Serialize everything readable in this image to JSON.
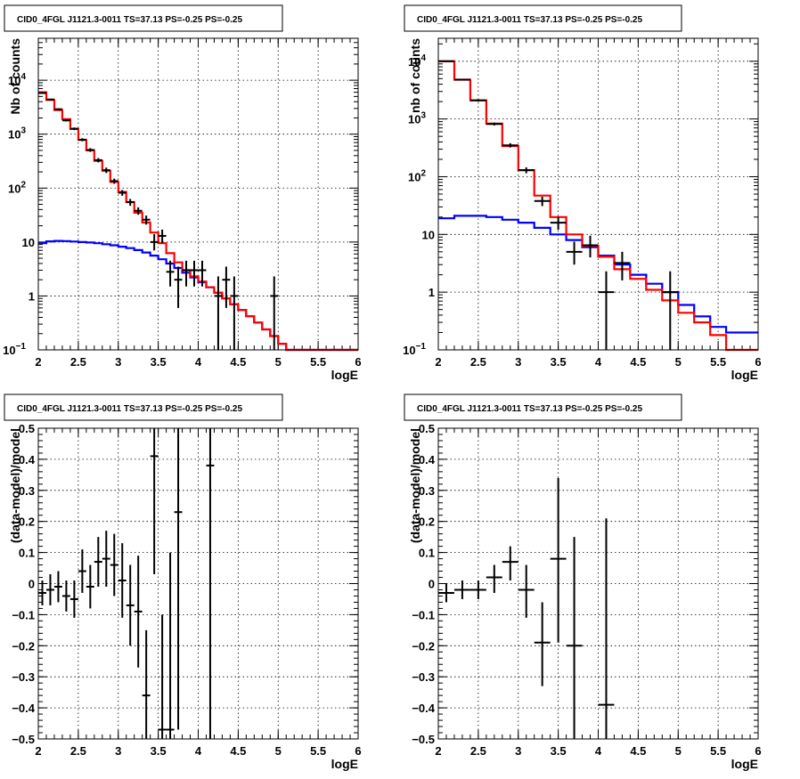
{
  "window_title": "",
  "chart_data": [
    {
      "type": "step-histogram-with-errorbars",
      "title": "CID0_4FGL J1121.3-0011 TS=37.13 PS=-0.25 PS=-0.25",
      "xlabel": "logE",
      "ylabel": "Nb of counts",
      "xlim": [
        2,
        6
      ],
      "ylim": [
        0.1,
        60000
      ],
      "yscale": "log",
      "grid": true,
      "x_ticks": [
        "2",
        "2.5",
        "3",
        "3.5",
        "4",
        "4.5",
        "5",
        "5.5",
        "6"
      ],
      "y_ticks": [
        {
          "value": 0.1,
          "label": "10",
          "sup": "−1"
        },
        {
          "value": 1,
          "label": "1",
          "sup": ""
        },
        {
          "value": 10,
          "label": "10",
          "sup": ""
        },
        {
          "value": 100,
          "label": "10",
          "sup": "2"
        },
        {
          "value": 1000,
          "label": "10",
          "sup": "3"
        },
        {
          "value": 10000,
          "label": "10",
          "sup": "4"
        }
      ],
      "bin_width": 0.1,
      "series": [
        {
          "type": "step",
          "color": "#0000ff",
          "x_start": 2.0,
          "values": [
            9.5,
            10.3,
            10.5,
            10.4,
            10.2,
            10.0,
            9.8,
            9.5,
            9.1,
            8.7,
            8.2,
            7.7,
            7.1,
            6.4,
            5.6,
            4.8,
            4.0,
            3.3,
            2.7,
            2.2,
            1.8,
            1.45,
            1.15,
            0.9,
            0.7,
            0.55,
            0.42,
            0.32,
            0.24,
            0.18,
            0.13,
            0.1,
            0.1,
            0.1,
            0.1,
            0.1,
            0.1,
            0.1,
            0.1,
            0.1
          ]
        },
        {
          "type": "step",
          "color": "#ff0000",
          "x_start": 2.0,
          "values": [
            6000,
            4300,
            2800,
            1900,
            1250,
            780,
            500,
            320,
            210,
            130,
            85,
            55,
            35,
            23,
            15,
            9.5,
            6.2,
            4.2,
            3.0,
            2.3,
            1.85,
            1.45,
            1.15,
            0.9,
            0.7,
            0.55,
            0.42,
            0.32,
            0.24,
            0.18,
            0.13,
            0.1,
            0.1,
            0.1,
            0.1,
            0.1,
            0.1,
            0.1,
            0.1,
            0.1
          ]
        }
      ],
      "points": [
        {
          "x": 2.05,
          "y": 5800,
          "lo": 5650,
          "hi": 5950
        },
        {
          "x": 2.15,
          "y": 4400,
          "lo": 4270,
          "hi": 4530
        },
        {
          "x": 2.25,
          "y": 2900,
          "lo": 2790,
          "hi": 3010
        },
        {
          "x": 2.35,
          "y": 1800,
          "lo": 1720,
          "hi": 1880
        },
        {
          "x": 2.45,
          "y": 1260,
          "lo": 1190,
          "hi": 1330
        },
        {
          "x": 2.55,
          "y": 790,
          "lo": 740,
          "hi": 840
        },
        {
          "x": 2.65,
          "y": 510,
          "lo": 470,
          "hi": 550
        },
        {
          "x": 2.75,
          "y": 330,
          "lo": 300,
          "hi": 360
        },
        {
          "x": 2.85,
          "y": 215,
          "lo": 190,
          "hi": 240
        },
        {
          "x": 2.95,
          "y": 135,
          "lo": 120,
          "hi": 150
        },
        {
          "x": 3.05,
          "y": 82,
          "lo": 72,
          "hi": 92
        },
        {
          "x": 3.15,
          "y": 55,
          "lo": 47,
          "hi": 63
        },
        {
          "x": 3.25,
          "y": 38,
          "lo": 32,
          "hi": 44
        },
        {
          "x": 3.35,
          "y": 26,
          "lo": 21,
          "hi": 31
        },
        {
          "x": 3.45,
          "y": 10,
          "lo": 7,
          "hi": 14
        },
        {
          "x": 3.55,
          "y": 13,
          "lo": 9.5,
          "hi": 17
        },
        {
          "x": 3.65,
          "y": 2.8,
          "lo": 1.5,
          "hi": 4.5
        },
        {
          "x": 3.75,
          "y": 2,
          "lo": 0.6,
          "hi": 3.5
        },
        {
          "x": 3.85,
          "y": 3,
          "lo": 1.5,
          "hi": 4.5
        },
        {
          "x": 3.95,
          "y": 3,
          "lo": 1.5,
          "hi": 4.5
        },
        {
          "x": 4.05,
          "y": 3,
          "lo": 1.5,
          "hi": 4.5
        },
        {
          "x": 4.25,
          "y": 1,
          "lo": 0.1,
          "hi": 2.3
        },
        {
          "x": 4.35,
          "y": 2,
          "lo": 0.6,
          "hi": 3.5
        },
        {
          "x": 4.45,
          "y": 1,
          "lo": 0.1,
          "hi": 2.3
        },
        {
          "x": 4.95,
          "y": 1,
          "lo": 0.1,
          "hi": 2.3
        }
      ]
    },
    {
      "type": "step-histogram-with-errorbars",
      "title": "CID0_4FGL J1121.3-0011 TS=37.13 PS=-0.25 PS=-0.25",
      "xlabel": "logE",
      "ylabel": "nb of counts",
      "xlim": [
        2,
        6
      ],
      "ylim": [
        0.1,
        25000
      ],
      "yscale": "log",
      "grid": true,
      "x_ticks": [
        "2",
        "2.5",
        "3",
        "3.5",
        "4",
        "4.5",
        "5",
        "5.5",
        "6"
      ],
      "y_ticks": [
        {
          "value": 0.1,
          "label": "10",
          "sup": "−1"
        },
        {
          "value": 1,
          "label": "1",
          "sup": ""
        },
        {
          "value": 10,
          "label": "10",
          "sup": ""
        },
        {
          "value": 100,
          "label": "10",
          "sup": "2"
        },
        {
          "value": 1000,
          "label": "10",
          "sup": "3"
        },
        {
          "value": 10000,
          "label": "10",
          "sup": "4"
        }
      ],
      "bin_width": 0.2,
      "series": [
        {
          "type": "step",
          "color": "#0000ff",
          "x_start": 2.0,
          "values": [
            19,
            21,
            21,
            20,
            18,
            16,
            13,
            10,
            8,
            6,
            4.3,
            3.0,
            2.0,
            1.4,
            1.0,
            0.6,
            0.38,
            0.25,
            0.2,
            0.2
          ]
        },
        {
          "type": "step",
          "color": "#ff0000",
          "x_start": 2.0,
          "values": [
            10000,
            4800,
            2100,
            830,
            340,
            130,
            47,
            20,
            10,
            6.3,
            4.1,
            2.5,
            1.7,
            1.1,
            0.72,
            0.44,
            0.3,
            0.18,
            0.1,
            0.1
          ]
        }
      ],
      "points": [
        {
          "x": 2.1,
          "y": 10000,
          "lo": 9800,
          "hi": 10200
        },
        {
          "x": 2.3,
          "y": 4800,
          "lo": 4650,
          "hi": 4950
        },
        {
          "x": 2.5,
          "y": 2100,
          "lo": 2000,
          "hi": 2200
        },
        {
          "x": 2.7,
          "y": 820,
          "lo": 770,
          "hi": 870
        },
        {
          "x": 2.9,
          "y": 350,
          "lo": 320,
          "hi": 380
        },
        {
          "x": 3.1,
          "y": 130,
          "lo": 115,
          "hi": 145
        },
        {
          "x": 3.3,
          "y": 38,
          "lo": 31,
          "hi": 45
        },
        {
          "x": 3.5,
          "y": 16,
          "lo": 12,
          "hi": 20
        },
        {
          "x": 3.7,
          "y": 5,
          "lo": 3,
          "hi": 7.5
        },
        {
          "x": 3.9,
          "y": 6.5,
          "lo": 4,
          "hi": 9.5
        },
        {
          "x": 4.1,
          "y": 1,
          "lo": 0.1,
          "hi": 2.3
        },
        {
          "x": 4.3,
          "y": 3.2,
          "lo": 1.6,
          "hi": 5
        },
        {
          "x": 4.9,
          "y": 1,
          "lo": 0.1,
          "hi": 2.3
        }
      ]
    },
    {
      "type": "errorbars",
      "title": "CID0_4FGL J1121.3-0011 TS=37.13 PS=-0.25 PS=-0.25",
      "xlabel": "logE",
      "ylabel": "(data-model)/model",
      "xlim": [
        2,
        6
      ],
      "ylim": [
        -0.5,
        0.5
      ],
      "yscale": "linear",
      "grid": true,
      "x_ticks": [
        "2",
        "2.5",
        "3",
        "3.5",
        "4",
        "4.5",
        "5",
        "5.5",
        "6"
      ],
      "y_ticks": [
        {
          "value": -0.5,
          "label": "−0.5",
          "sup": ""
        },
        {
          "value": -0.4,
          "label": "−0.4",
          "sup": ""
        },
        {
          "value": -0.3,
          "label": "−0.3",
          "sup": ""
        },
        {
          "value": -0.2,
          "label": "−0.2",
          "sup": ""
        },
        {
          "value": -0.1,
          "label": "−0.1",
          "sup": ""
        },
        {
          "value": 0,
          "label": "0",
          "sup": ""
        },
        {
          "value": 0.1,
          "label": "0.1",
          "sup": ""
        },
        {
          "value": 0.2,
          "label": "0.2",
          "sup": ""
        },
        {
          "value": 0.3,
          "label": "0.3",
          "sup": ""
        },
        {
          "value": 0.4,
          "label": "0.4",
          "sup": ""
        },
        {
          "value": 0.5,
          "label": "0.5",
          "sup": ""
        }
      ],
      "bin_width": 0.1,
      "series": [],
      "points": [
        {
          "x": 2.05,
          "y": -0.03,
          "lo": -0.07,
          "hi": 0.01
        },
        {
          "x": 2.15,
          "y": -0.02,
          "lo": -0.07,
          "hi": 0.03
        },
        {
          "x": 2.25,
          "y": -0.01,
          "lo": -0.06,
          "hi": 0.04
        },
        {
          "x": 2.35,
          "y": -0.04,
          "lo": -0.09,
          "hi": 0.01
        },
        {
          "x": 2.45,
          "y": -0.05,
          "lo": -0.11,
          "hi": 0.01
        },
        {
          "x": 2.55,
          "y": 0.04,
          "lo": -0.03,
          "hi": 0.11
        },
        {
          "x": 2.65,
          "y": -0.01,
          "lo": -0.08,
          "hi": 0.06
        },
        {
          "x": 2.75,
          "y": 0.07,
          "lo": -0.01,
          "hi": 0.15
        },
        {
          "x": 2.85,
          "y": 0.08,
          "lo": -0.01,
          "hi": 0.17
        },
        {
          "x": 2.95,
          "y": 0.06,
          "lo": -0.04,
          "hi": 0.16
        },
        {
          "x": 3.05,
          "y": 0.01,
          "lo": -0.11,
          "hi": 0.13
        },
        {
          "x": 3.15,
          "y": -0.07,
          "lo": -0.2,
          "hi": 0.06
        },
        {
          "x": 3.25,
          "y": -0.09,
          "lo": -0.27,
          "hi": 0.09
        },
        {
          "x": 3.35,
          "y": -0.36,
          "lo": -0.5,
          "hi": -0.15
        },
        {
          "x": 3.45,
          "y": 0.41,
          "lo": 0.03,
          "hi": 0.5
        },
        {
          "x": 3.55,
          "y": -0.47,
          "lo": -0.5,
          "hi": -0.1
        },
        {
          "x": 3.65,
          "y": -0.47,
          "lo": -0.5,
          "hi": 0.1
        },
        {
          "x": 3.75,
          "y": 0.23,
          "lo": -0.47,
          "hi": 0.5
        },
        {
          "x": 4.15,
          "y": 0.38,
          "lo": -0.5,
          "hi": 0.5
        }
      ]
    },
    {
      "type": "errorbars",
      "title": "CID0_4FGL J1121.3-0011 TS=37.13 PS=-0.25 PS=-0.25",
      "xlabel": "logE",
      "ylabel": "(data-model)/model",
      "xlim": [
        2,
        6
      ],
      "ylim": [
        -0.5,
        0.5
      ],
      "yscale": "linear",
      "grid": true,
      "x_ticks": [
        "2",
        "2.5",
        "3",
        "3.5",
        "4",
        "4.5",
        "5",
        "5.5",
        "6"
      ],
      "y_ticks": [
        {
          "value": -0.5,
          "label": "−0.5",
          "sup": ""
        },
        {
          "value": -0.4,
          "label": "−0.4",
          "sup": ""
        },
        {
          "value": -0.3,
          "label": "−0.3",
          "sup": ""
        },
        {
          "value": -0.2,
          "label": "−0.2",
          "sup": ""
        },
        {
          "value": -0.1,
          "label": "−0.1",
          "sup": ""
        },
        {
          "value": 0,
          "label": "0",
          "sup": ""
        },
        {
          "value": 0.1,
          "label": "0.1",
          "sup": ""
        },
        {
          "value": 0.2,
          "label": "0.2",
          "sup": ""
        },
        {
          "value": 0.3,
          "label": "0.3",
          "sup": ""
        },
        {
          "value": 0.4,
          "label": "0.4",
          "sup": ""
        },
        {
          "value": 0.5,
          "label": "0.5",
          "sup": ""
        }
      ],
      "bin_width": 0.2,
      "series": [],
      "points": [
        {
          "x": 2.1,
          "y": -0.03,
          "lo": -0.06,
          "hi": 0.0
        },
        {
          "x": 2.3,
          "y": -0.02,
          "lo": -0.05,
          "hi": 0.01
        },
        {
          "x": 2.5,
          "y": -0.02,
          "lo": -0.05,
          "hi": 0.01
        },
        {
          "x": 2.7,
          "y": 0.02,
          "lo": -0.03,
          "hi": 0.06
        },
        {
          "x": 2.9,
          "y": 0.07,
          "lo": 0.01,
          "hi": 0.12
        },
        {
          "x": 3.1,
          "y": -0.02,
          "lo": -0.11,
          "hi": 0.06
        },
        {
          "x": 3.3,
          "y": -0.19,
          "lo": -0.33,
          "hi": -0.06
        },
        {
          "x": 3.5,
          "y": 0.08,
          "lo": -0.19,
          "hi": 0.34
        },
        {
          "x": 3.7,
          "y": -0.2,
          "lo": -0.5,
          "hi": 0.15
        },
        {
          "x": 4.1,
          "y": -0.39,
          "lo": -0.5,
          "hi": 0.21
        }
      ]
    }
  ]
}
